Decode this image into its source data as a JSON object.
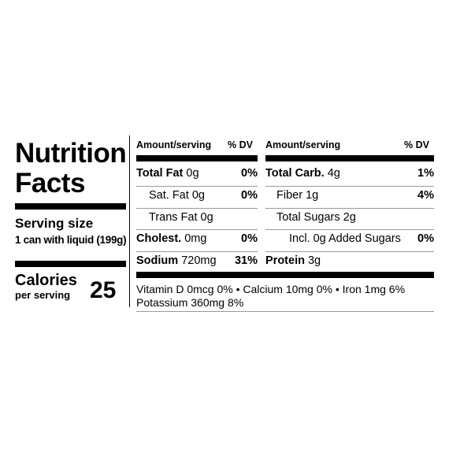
{
  "label": {
    "title_line1": "Nutrition",
    "title_line2": "Facts",
    "serving_size_label": "Serving size",
    "serving_size_value": "1 can with liquid (199g)",
    "calories_label": "Calories",
    "calories_sub": "per serving",
    "calories_value": "25"
  },
  "table": {
    "left_header": {
      "amount": "Amount/serving",
      "dv": "% DV"
    },
    "right_header": {
      "amount": "Amount/serving",
      "dv": "% DV"
    },
    "left_rows": [
      {
        "name": "Total Fat",
        "amount": "0g",
        "dv": "0%"
      },
      {
        "name": "Sat. Fat",
        "amount": "0g",
        "dv": "0%"
      },
      {
        "name": "Trans Fat",
        "amount": "0g",
        "dv": ""
      },
      {
        "name": "Cholest.",
        "amount": "0mg",
        "dv": "0%"
      },
      {
        "name": "Sodium",
        "amount": "720mg",
        "dv": "31%"
      }
    ],
    "right_rows": [
      {
        "name": "Total Carb.",
        "amount": "4g",
        "dv": "1%"
      },
      {
        "name": "Fiber",
        "amount": "1g",
        "dv": "4%"
      },
      {
        "name": "Total Sugars",
        "amount": "2g",
        "dv": ""
      },
      {
        "name": "Incl. 0g Added Sugars",
        "amount": "",
        "dv": "0%"
      },
      {
        "name": "Protein",
        "amount": "3g",
        "dv": ""
      }
    ]
  },
  "vitamins": {
    "line1": "Vitamin D 0mcg 0%  •  Calcium 10mg 0%  •  Iron 1mg 6%",
    "line2": "Potassium 360mg 8%"
  }
}
